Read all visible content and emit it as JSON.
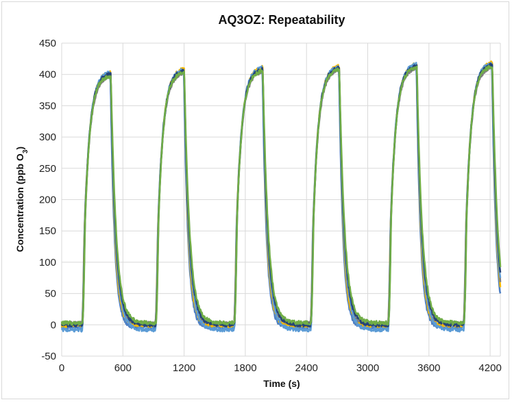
{
  "chart_data": {
    "type": "line",
    "title": "AQ3OZ: Repeatability",
    "xlabel": "Time (s)",
    "ylabel": "Concentration (ppb O3)",
    "xlim": [
      0,
      4300
    ],
    "ylim": [
      -50,
      450
    ],
    "x_ticks": [
      "0",
      "600",
      "1200",
      "1800",
      "2400",
      "3000",
      "3600",
      "4200"
    ],
    "y_ticks": [
      "450",
      "400",
      "350",
      "300",
      "250",
      "200",
      "150",
      "100",
      "50",
      "0",
      "-50"
    ],
    "grid": true,
    "legend": "none",
    "cycles": [
      {
        "rise_start": 200,
        "fall_start": 480,
        "peak": 405
      },
      {
        "rise_start": 920,
        "fall_start": 1200,
        "peak": 410
      },
      {
        "rise_start": 1690,
        "fall_start": 1970,
        "peak": 413
      },
      {
        "rise_start": 2440,
        "fall_start": 2720,
        "peak": 415
      },
      {
        "rise_start": 3200,
        "fall_start": 3480,
        "peak": 418
      },
      {
        "rise_start": 3940,
        "fall_start": 4220,
        "peak": 420
      }
    ],
    "series": [
      {
        "color": "#4e80c4",
        "baseline_offset": -4
      },
      {
        "color": "#f5b800",
        "baseline_offset": -1
      },
      {
        "color": "#7f7f7f",
        "baseline_offset": 2
      },
      {
        "color": "#5b9bd5",
        "baseline_offset": -8
      },
      {
        "color": "#264478",
        "baseline_offset": 0
      },
      {
        "color": "#70ad47",
        "baseline_offset": 3
      }
    ]
  }
}
